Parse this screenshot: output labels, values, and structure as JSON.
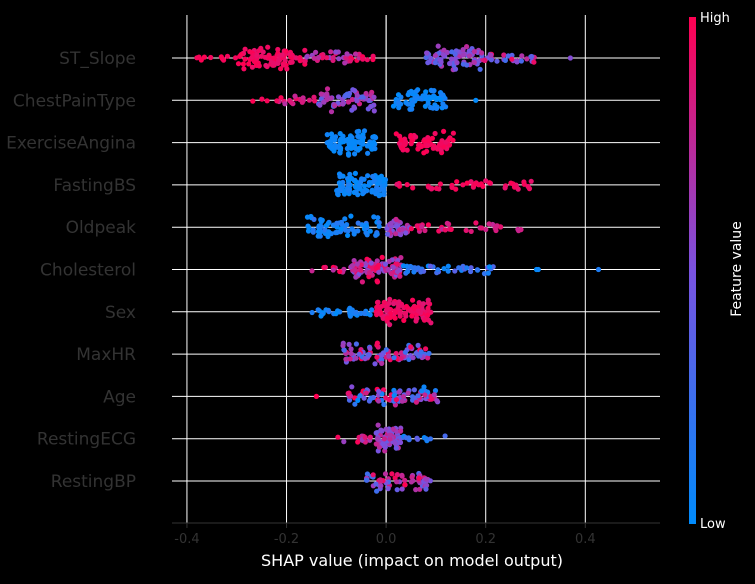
{
  "chart_data": {
    "type": "scatter",
    "subtype": "shap-beeswarm",
    "xlabel": "SHAP value (impact on model output)",
    "xlim": [
      -0.43,
      0.55
    ],
    "xticks": [
      -0.4,
      -0.2,
      0.0,
      0.2,
      0.4
    ],
    "xtick_labels": [
      "-0.4",
      "-0.2",
      "0.0",
      "0.2",
      "0.4"
    ],
    "grid": true,
    "colorbar": {
      "label": "Feature value",
      "high_label": "High",
      "low_label": "Low",
      "low_color": "#008bfb",
      "mid_color": "#7a52e0",
      "high_color": "#ff0051"
    },
    "background_color": "#000000",
    "axis_text_color": "#333333",
    "label_text_color": "#ffffff",
    "features": [
      {
        "name": "ST_Slope",
        "segments": [
          {
            "lo": -0.39,
            "hi": -0.3,
            "fv": [
              0.95,
              1.0
            ],
            "n": 10,
            "w": 0.25
          },
          {
            "lo": -0.3,
            "hi": -0.16,
            "fv": [
              0.9,
              1.0
            ],
            "n": 80,
            "w": 0.85
          },
          {
            "lo": -0.16,
            "hi": -0.05,
            "fv": [
              0.55,
              1.0
            ],
            "n": 35,
            "w": 0.45
          },
          {
            "lo": -0.05,
            "hi": -0.01,
            "fv": [
              0.9,
              1.0
            ],
            "n": 5,
            "w": 0.2
          },
          {
            "lo": 0.08,
            "hi": 0.19,
            "fv": [
              0.3,
              0.75
            ],
            "n": 70,
            "w": 0.85
          },
          {
            "lo": 0.19,
            "hi": 0.3,
            "fv": [
              0.25,
              1.0
            ],
            "n": 30,
            "w": 0.4
          },
          {
            "lo": 0.37,
            "hi": 0.37,
            "fv": [
              0.5,
              0.6
            ],
            "n": 1,
            "w": 0.0
          }
        ]
      },
      {
        "name": "ChestPainType",
        "segments": [
          {
            "lo": -0.27,
            "hi": -0.22,
            "fv": [
              0.9,
              1.0
            ],
            "n": 3,
            "w": 0.2
          },
          {
            "lo": -0.22,
            "hi": -0.14,
            "fv": [
              0.65,
              1.0
            ],
            "n": 18,
            "w": 0.35
          },
          {
            "lo": -0.14,
            "hi": -0.02,
            "fv": [
              0.3,
              0.85
            ],
            "n": 65,
            "w": 0.85
          },
          {
            "lo": 0.01,
            "hi": 0.12,
            "fv": [
              0.0,
              0.12
            ],
            "n": 75,
            "w": 0.85
          },
          {
            "lo": 0.18,
            "hi": 0.18,
            "fv": [
              0.0,
              0.1
            ],
            "n": 1,
            "w": 0.0
          }
        ]
      },
      {
        "name": "ExerciseAngina",
        "segments": [
          {
            "lo": -0.12,
            "hi": -0.02,
            "fv": [
              0.0,
              0.08
            ],
            "n": 95,
            "w": 0.9
          },
          {
            "lo": 0.02,
            "hi": 0.14,
            "fv": [
              0.92,
              1.0
            ],
            "n": 70,
            "w": 0.8
          }
        ]
      },
      {
        "name": "FastingBS",
        "segments": [
          {
            "lo": -0.1,
            "hi": 0.0,
            "fv": [
              0.0,
              0.12
            ],
            "n": 100,
            "w": 0.9
          },
          {
            "lo": 0.02,
            "hi": 0.3,
            "fv": [
              0.9,
              1.0
            ],
            "n": 45,
            "w": 0.35
          }
        ]
      },
      {
        "name": "Oldpeak",
        "segments": [
          {
            "lo": -0.16,
            "hi": -0.01,
            "fv": [
              0.0,
              0.2
            ],
            "n": 70,
            "w": 0.85
          },
          {
            "lo": 0.0,
            "hi": 0.05,
            "fv": [
              0.4,
              0.8
            ],
            "n": 35,
            "w": 0.7
          },
          {
            "lo": 0.05,
            "hi": 0.28,
            "fv": [
              0.75,
              1.0
            ],
            "n": 35,
            "w": 0.35
          }
        ]
      },
      {
        "name": "Cholesterol",
        "segments": [
          {
            "lo": -0.17,
            "hi": -0.06,
            "fv": [
              0.7,
              1.0
            ],
            "n": 12,
            "w": 0.3
          },
          {
            "lo": -0.07,
            "hi": 0.03,
            "fv": [
              0.45,
              1.0
            ],
            "n": 85,
            "w": 0.9
          },
          {
            "lo": 0.03,
            "hi": 0.22,
            "fv": [
              0.0,
              0.4
            ],
            "n": 40,
            "w": 0.4
          },
          {
            "lo": 0.3,
            "hi": 0.5,
            "fv": [
              0.0,
              0.15
            ],
            "n": 3,
            "w": 0.0
          }
        ]
      },
      {
        "name": "Sex",
        "segments": [
          {
            "lo": -0.15,
            "hi": -0.02,
            "fv": [
              0.0,
              0.15
            ],
            "n": 35,
            "w": 0.35
          },
          {
            "lo": -0.02,
            "hi": 0.09,
            "fv": [
              0.88,
              1.0
            ],
            "n": 100,
            "w": 0.95
          }
        ]
      },
      {
        "name": "MaxHR",
        "segments": [
          {
            "lo": -0.09,
            "hi": 0.09,
            "fv": [
              0.15,
              1.0
            ],
            "n": 90,
            "w": 0.75
          }
        ]
      },
      {
        "name": "Age",
        "segments": [
          {
            "lo": -0.14,
            "hi": -0.14,
            "fv": [
              0.9,
              1.0
            ],
            "n": 1,
            "w": 0.0
          },
          {
            "lo": -0.08,
            "hi": 0.11,
            "fv": [
              0.0,
              1.0
            ],
            "n": 90,
            "w": 0.7
          }
        ]
      },
      {
        "name": "RestingECG",
        "segments": [
          {
            "lo": -0.1,
            "hi": -0.01,
            "fv": [
              0.6,
              1.0
            ],
            "n": 15,
            "w": 0.3
          },
          {
            "lo": -0.02,
            "hi": 0.03,
            "fv": [
              0.4,
              0.8
            ],
            "n": 65,
            "w": 0.95
          },
          {
            "lo": 0.03,
            "hi": 0.12,
            "fv": [
              0.0,
              0.4
            ],
            "n": 12,
            "w": 0.25
          }
        ]
      },
      {
        "name": "RestingBP",
        "segments": [
          {
            "lo": -0.04,
            "hi": 0.09,
            "fv": [
              0.2,
              1.0
            ],
            "n": 65,
            "w": 0.75
          }
        ]
      }
    ]
  }
}
